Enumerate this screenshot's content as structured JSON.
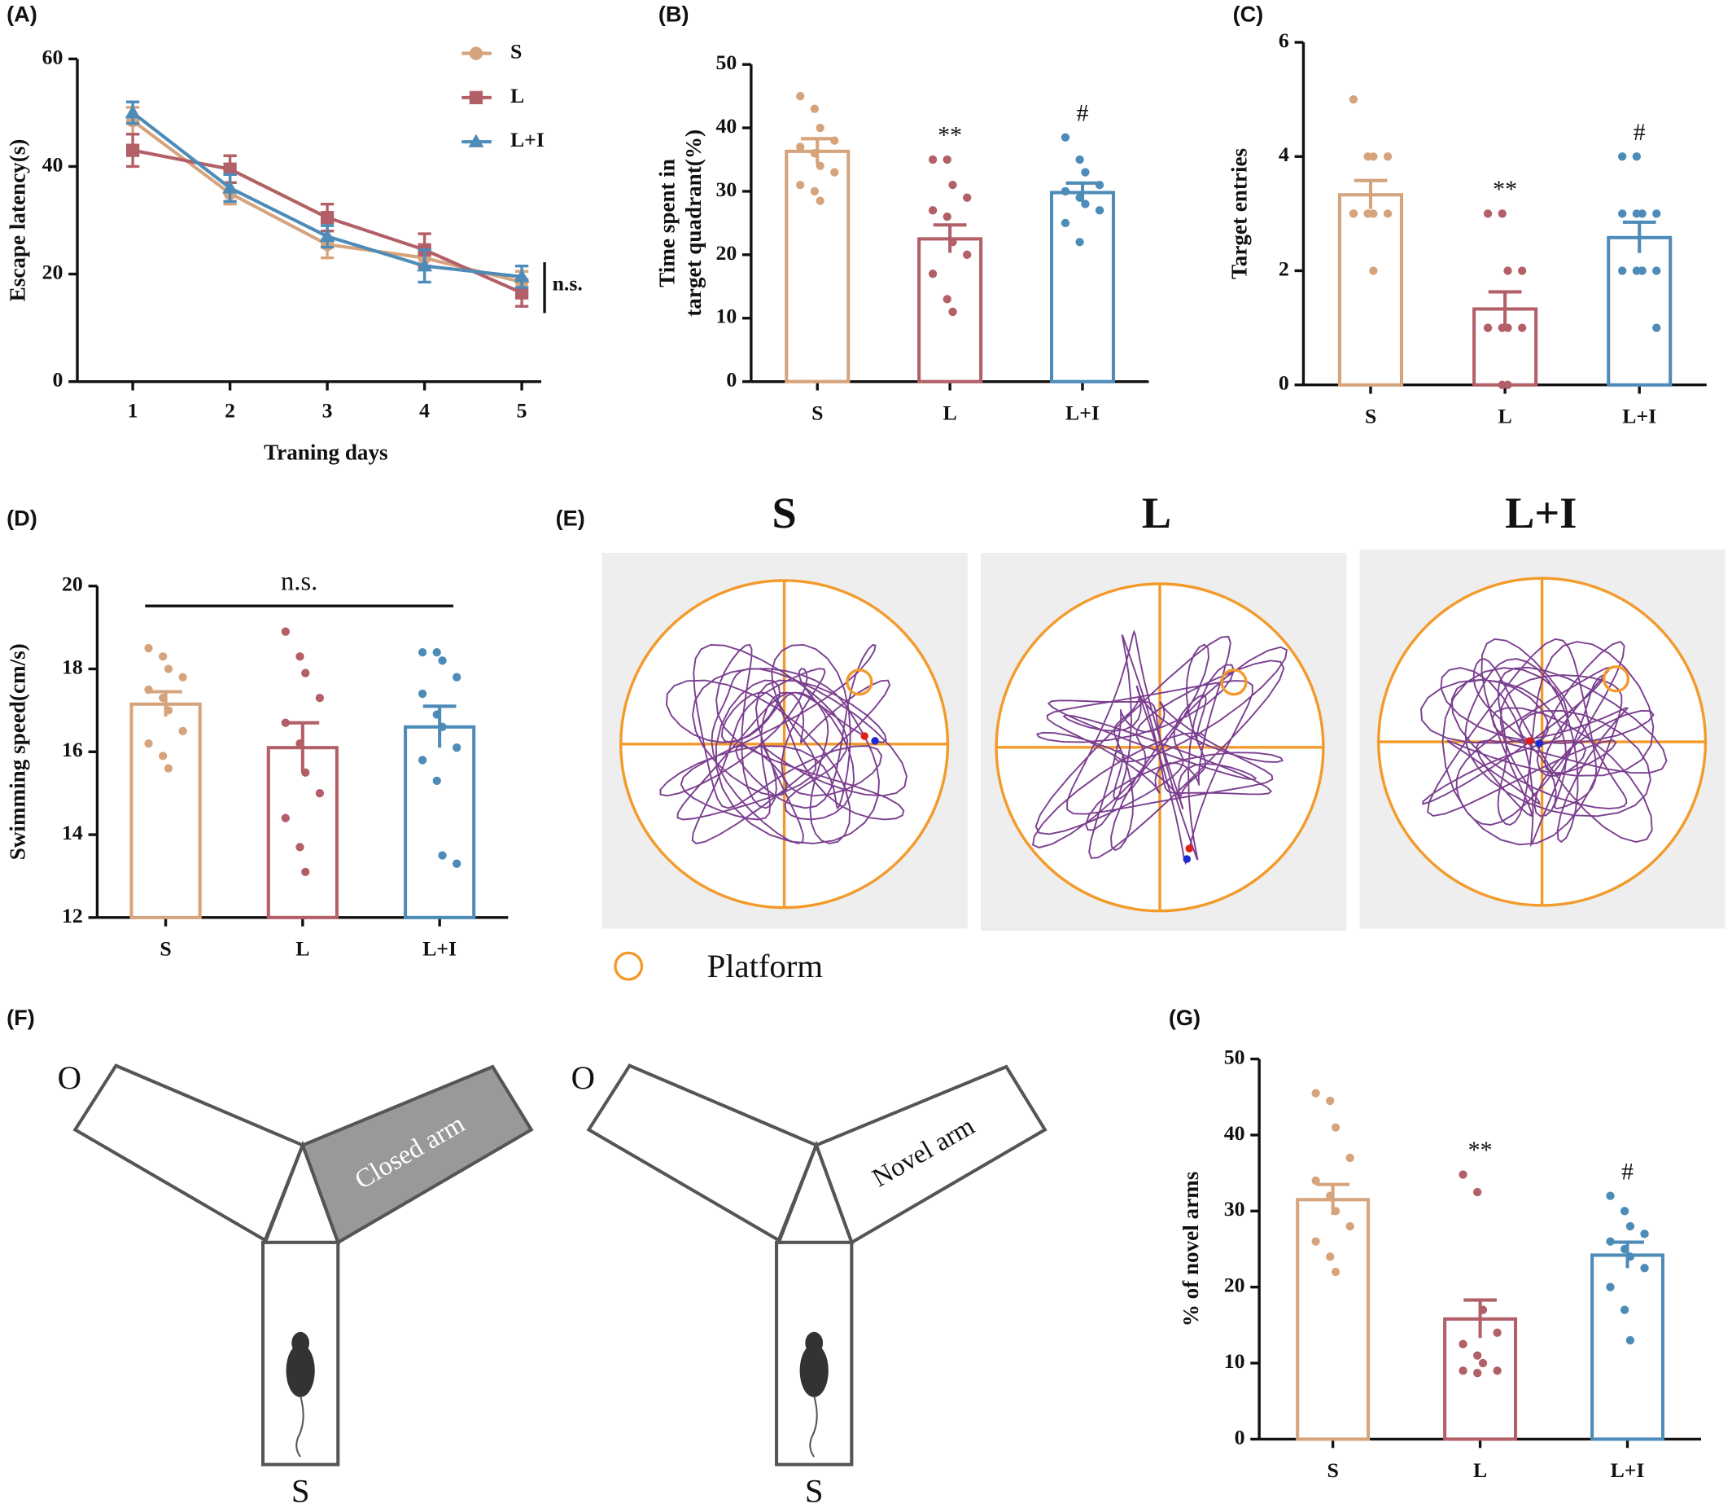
{
  "chart_data": [
    {
      "type": "line",
      "panel": "(A)",
      "xlabel": "Traning days",
      "ylabel": "Escape latency(s)",
      "x": [
        1,
        2,
        3,
        4,
        5
      ],
      "xlim": [
        0.43,
        5.2
      ],
      "xticks": [
        1,
        2,
        3,
        4,
        5
      ],
      "ylim": [
        0,
        60
      ],
      "yticks": [
        0,
        20,
        40,
        60
      ],
      "annotation": "n.s.",
      "series": [
        {
          "name": "S",
          "color": "#d6a47c",
          "marker": "circle",
          "values": [
            48.5,
            35,
            25.5,
            23,
            18.5
          ],
          "errors": [
            2.5,
            2,
            2.5,
            2,
            2
          ]
        },
        {
          "name": "L",
          "color": "#b35f68",
          "marker": "square",
          "values": [
            43,
            39.5,
            30.5,
            24.5,
            16.5
          ],
          "errors": [
            3,
            2.5,
            2.5,
            3,
            2.5
          ]
        },
        {
          "name": "L+I",
          "color": "#4d8bb8",
          "marker": "triangle",
          "values": [
            50,
            36,
            27,
            21.5,
            19.5
          ],
          "errors": [
            2,
            2.5,
            2,
            3,
            2
          ]
        }
      ]
    },
    {
      "type": "bar",
      "panel": "(B)",
      "ylabel": [
        "Time spent in",
        "target quadrant(%)"
      ],
      "categories": [
        "S",
        "L",
        "L+I"
      ],
      "colors": [
        "#d6a47c",
        "#b35f68",
        "#4d8bb8"
      ],
      "values": [
        36.3,
        22.5,
        29.8
      ],
      "errors": [
        2,
        2.2,
        1.5
      ],
      "points": [
        [
          45,
          43,
          40,
          38,
          37,
          36,
          34,
          33,
          31,
          30,
          28.5
        ],
        [
          35,
          35,
          31,
          29,
          27,
          26,
          22,
          20,
          17,
          13,
          11
        ],
        [
          38.5,
          35,
          33,
          31,
          30,
          29,
          28,
          27,
          25,
          22
        ]
      ],
      "ylim": [
        0,
        50
      ],
      "yticks": [
        0,
        10,
        20,
        30,
        40,
        50
      ],
      "annotations": [
        {
          "category": 1,
          "text": "**"
        },
        {
          "category": 2,
          "text": "#"
        }
      ]
    },
    {
      "type": "bar",
      "panel": "(C)",
      "ylabel": [
        "Target entries"
      ],
      "categories": [
        "S",
        "L",
        "L+I"
      ],
      "colors": [
        "#d6a47c",
        "#b35f68",
        "#4d8bb8"
      ],
      "values": [
        3.33,
        1.33,
        2.58
      ],
      "errors": [
        0.25,
        0.3,
        0.27
      ],
      "points": [
        [
          5,
          4,
          4,
          4,
          3,
          3,
          3,
          3,
          3,
          3,
          2
        ],
        [
          3,
          3,
          2,
          2,
          1,
          1,
          1,
          1,
          1,
          0,
          0
        ],
        [
          4,
          4,
          3,
          3,
          3,
          3,
          2,
          2,
          2,
          2,
          2,
          1
        ]
      ],
      "ylim": [
        0,
        6
      ],
      "yticks": [
        0,
        2,
        4,
        6
      ],
      "annotations": [
        {
          "category": 1,
          "text": "**"
        },
        {
          "category": 2,
          "text": "#"
        }
      ]
    },
    {
      "type": "bar",
      "panel": "(D)",
      "ylabel": [
        "Swimming speed(cm/s)"
      ],
      "categories": [
        "S",
        "L",
        "L+I"
      ],
      "colors": [
        "#d6a47c",
        "#b35f68",
        "#4d8bb8"
      ],
      "values": [
        17.15,
        16.1,
        16.6
      ],
      "errors": [
        0.3,
        0.6,
        0.5
      ],
      "points": [
        [
          18.5,
          18.3,
          18,
          17.8,
          17.5,
          17.3,
          17,
          16.5,
          16.2,
          15.9,
          15.6
        ],
        [
          18.9,
          18.3,
          17.9,
          17.3,
          16.7,
          16.2,
          15.5,
          15,
          14.4,
          13.7,
          13.1
        ],
        [
          18.4,
          18.4,
          18.2,
          17.8,
          17.4,
          16.9,
          16.6,
          16.1,
          15.8,
          15.3,
          13.5,
          13.3
        ]
      ],
      "ylim": [
        12,
        20
      ],
      "yticks": [
        12,
        14,
        16,
        18,
        20
      ],
      "annotation": "n.s."
    },
    {
      "type": "bar",
      "panel": "(G)",
      "ylabel": [
        "% of novel arms"
      ],
      "categories": [
        "S",
        "L",
        "L+I"
      ],
      "colors": [
        "#d6a47c",
        "#b35f68",
        "#4d8bb8"
      ],
      "values": [
        31.5,
        15.8,
        24.2
      ],
      "errors": [
        2,
        2.5,
        1.7
      ],
      "points": [
        [
          45.5,
          44.5,
          41,
          37,
          34,
          32,
          30,
          28,
          26,
          24,
          22
        ],
        [
          34.8,
          32.5,
          17,
          14,
          12.5,
          11,
          10,
          9,
          9,
          8.7
        ],
        [
          32,
          30,
          28,
          27,
          26,
          25,
          24,
          22.5,
          20,
          17,
          13
        ]
      ],
      "ylim": [
        0,
        50
      ],
      "yticks": [
        0,
        10,
        20,
        30,
        40,
        50
      ],
      "annotations": [
        {
          "category": 1,
          "text": "**"
        },
        {
          "category": 2,
          "text": "#"
        }
      ]
    }
  ],
  "trajectory": {
    "panel": "(E)",
    "groups": [
      "S",
      "L",
      "L+I"
    ],
    "legend": "Platform"
  },
  "maze": {
    "panel": "(F)",
    "left": {
      "open": "O",
      "other": "Closed arm",
      "start": "S"
    },
    "right": {
      "open": "O",
      "other": "Novel arm",
      "start": "S"
    }
  }
}
